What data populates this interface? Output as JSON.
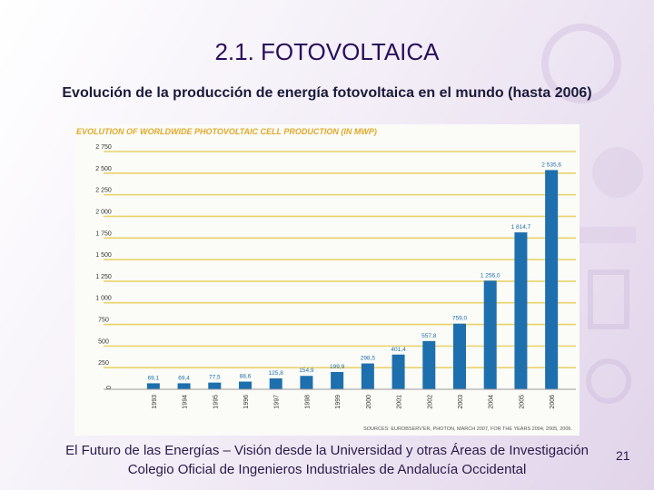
{
  "slide": {
    "title": "2.1. FOTOVOLTAICA",
    "subtitle": "Evolución de la producción de energía fotovoltaica en el mundo (hasta 2006)",
    "footer_line1": "El Futuro de las Energías – Visión desde la Universidad y otras Áreas de Investigación",
    "footer_line2": "Colegio Oficial de Ingenieros Industriales de Andalucía Occidental",
    "page_number": "21"
  },
  "colors": {
    "bar": "#1d6fae",
    "chart_title": "#e0a92a",
    "gridline": "#e8d36a",
    "text_dark": "#2a0f5c"
  },
  "chart_data": {
    "type": "bar",
    "title": "EVOLUTION OF WORLDWIDE PHOTOVOLTAIC CELL PRODUCTION (IN MWP)",
    "source": "SOURCES: EUROBSERV'ER, PHOTON, MARCH 2007, FOR THE YEARS 2004, 2005, 2006.",
    "categories": [
      "1993",
      "1994",
      "1995",
      "1996",
      "1997",
      "1998",
      "1999",
      "2000",
      "2001",
      "2002",
      "2003",
      "2004",
      "2005",
      "2006"
    ],
    "values": [
      69.1,
      69.4,
      77.5,
      88.6,
      125.8,
      154.9,
      199.9,
      298.5,
      401.4,
      557.8,
      759.0,
      1256.0,
      1814.7,
      2535.6
    ],
    "value_labels": [
      "69,1",
      "69,4",
      "77,5",
      "88,6",
      "125,8",
      "154,9",
      "199,9",
      "298,5",
      "401,4",
      "557,8",
      "759,0",
      "1 256,0",
      "1 814,7",
      "2 535,6"
    ],
    "yticks": [
      0,
      250,
      500,
      750,
      1000,
      1250,
      1500,
      1750,
      2000,
      2250,
      2500,
      2750
    ],
    "ytick_labels": [
      "0",
      "250",
      "500",
      "750",
      "1 000",
      "1 250",
      "1 500",
      "1 750",
      "2 000",
      "2 250",
      "2 500",
      "2 750"
    ],
    "ylim": [
      0,
      2750
    ],
    "grid": true
  }
}
